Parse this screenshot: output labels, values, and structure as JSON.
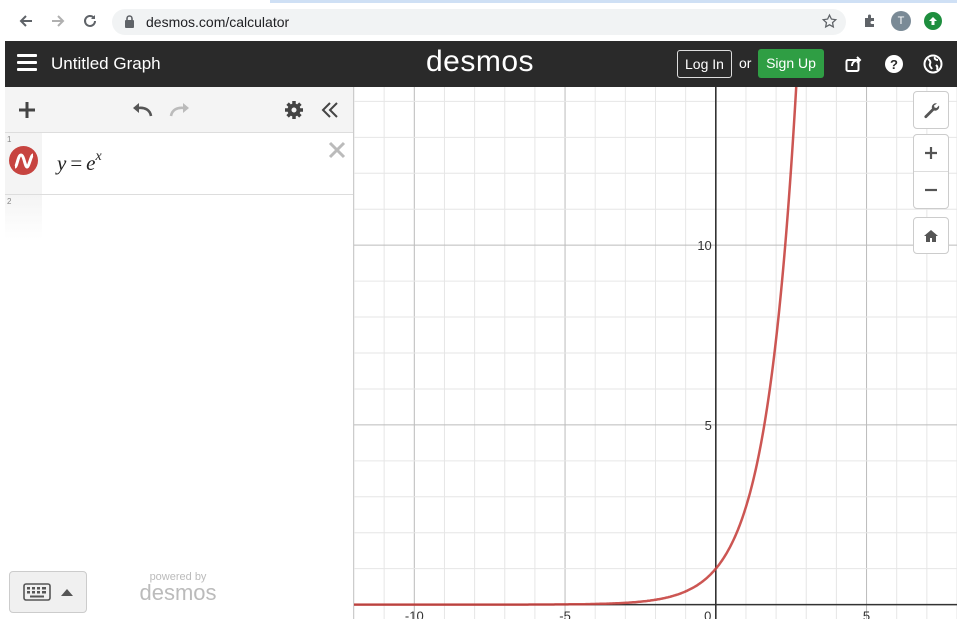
{
  "browser": {
    "url": "desmos.com/calculator",
    "profile_initial": "T",
    "icons": [
      "back-icon",
      "forward-icon",
      "reload-icon",
      "lock-icon",
      "star-icon",
      "extensions-icon",
      "update-icon"
    ]
  },
  "header": {
    "graph_title": "Untitled Graph",
    "brand": "desmos",
    "login_label": "Log In",
    "or_text": "or",
    "signup_label": "Sign Up",
    "icons": [
      "share-icon",
      "help-icon",
      "language-icon"
    ]
  },
  "expressions": [
    {
      "index": "1",
      "latex_display": {
        "lhs": "y",
        "eq": "=",
        "base": "e",
        "exp": "x"
      },
      "color": "#c74440"
    },
    {
      "index": "2"
    }
  ],
  "footer": {
    "powered_by": "powered by",
    "brand": "desmos"
  },
  "graph": {
    "x_ticks": [
      "-10",
      "-5",
      "0",
      "5"
    ],
    "y_ticks": [
      "5",
      "10"
    ],
    "x_range": [
      -12,
      8
    ],
    "y_range": [
      -0.4,
      14.4
    ],
    "curve_color": "#c74440"
  },
  "colors": {
    "header_bg": "#2a2a2a",
    "signup_bg": "#2f9e44",
    "curve": "#c74440"
  }
}
